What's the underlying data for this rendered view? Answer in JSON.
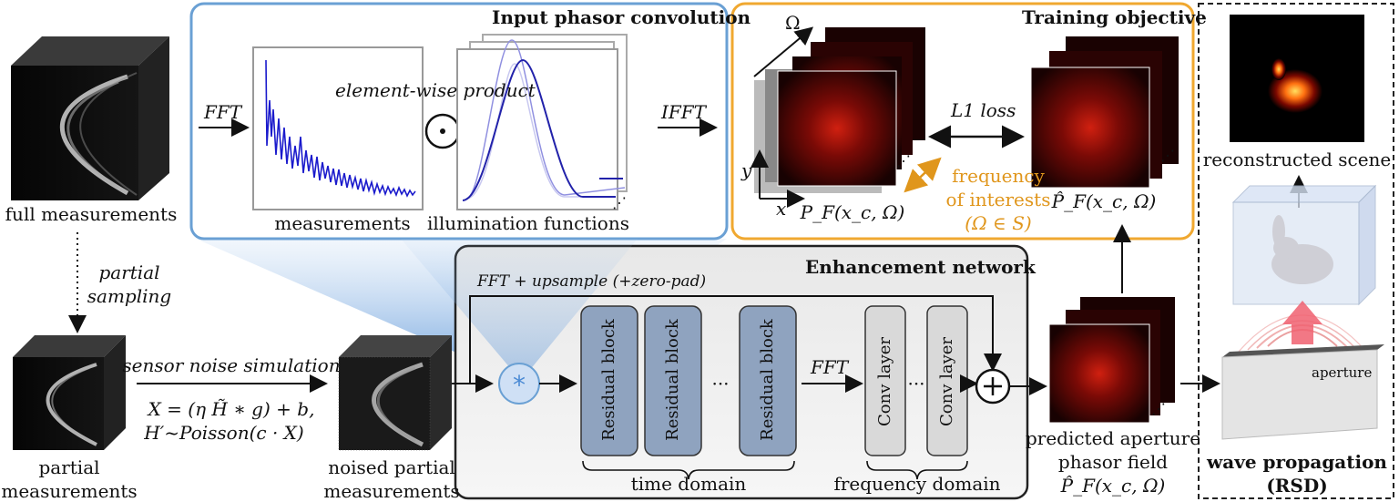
{
  "panels": {
    "input_conv": "Input phasor convolution",
    "training": "Training objective",
    "enhancement": "Enhancement network"
  },
  "labels": {
    "full_measurements": "full measurements",
    "partial_sampling_1": "partial",
    "partial_sampling_2": "sampling",
    "partial_meas_1": "partial",
    "partial_meas_2": "measurements",
    "sensor_noise": "sensor noise simulation",
    "eq1": "X = (η H̃ ∗ g) + b,",
    "eq2": "H′~Poisson(c · X)",
    "noised_1": "noised partial",
    "noised_2": "measurements",
    "fft_in": "FFT",
    "element_wise": "element-wise product",
    "measurements": "measurements",
    "illumination": "illumination functions",
    "ifft": "IFFT",
    "omega": "Ω",
    "y_axis": "y",
    "x_axis": "x",
    "pf": "P_F(x_c, Ω)",
    "l1_loss": "L1 loss",
    "freq_1": "frequency",
    "freq_2": "of interests",
    "freq_3": "(Ω ∈ S)",
    "pf_hat": "P̂_F(x_c, Ω)",
    "fft_upsample": "FFT + upsample (+zero-pad)",
    "res_block_1": "Residual block",
    "res_block_2": "Residual block",
    "res_block_3": "Residual block",
    "ellipsis_res": "···",
    "fft_mid": "FFT",
    "conv_1": "Conv layer",
    "conv_2": "Conv layer",
    "ellipsis_conv": "···",
    "time_domain": "time domain",
    "freq_domain": "frequency domain",
    "pred_1": "predicted aperture",
    "pred_2": "phasor field",
    "pred_3": "P̂_F(x_c, Ω)",
    "reconstructed": "reconstructed scene",
    "aperture": "aperture",
    "wave_1": "wave propagation",
    "wave_2": "(RSD)",
    "dots": "⋰"
  },
  "colors": {
    "blue_panel": "#6aa0d4",
    "orange_panel": "#f0a830",
    "gray_panel": "#f0f0f0",
    "block_blue": "#8fa3bf",
    "block_gray": "#d9d9d9",
    "red_field": "#a01010",
    "plot_blue": "#1a1acc"
  }
}
